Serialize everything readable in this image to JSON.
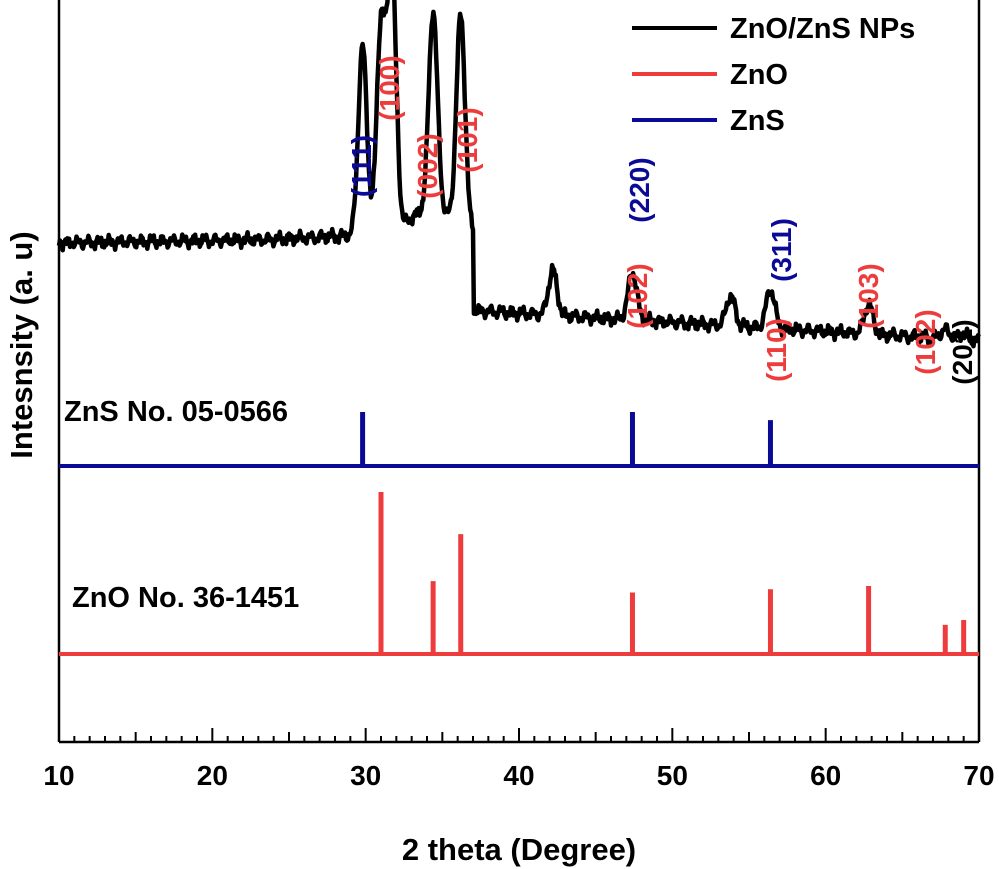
{
  "chart_data": {
    "type": "line",
    "xlabel": "2 theta (Degree)",
    "ylabel": "Intesnsity (a. u)",
    "xlim": [
      10,
      70
    ],
    "x_ticks": [
      "10",
      "20",
      "30",
      "40",
      "50",
      "60",
      "70"
    ],
    "grid": false,
    "legend_position": "top-right",
    "colors": {
      "sample": "#000000",
      "zno": "#ee3b3b",
      "zns": "#0a0a96"
    },
    "legend": [
      {
        "name": "ZnO/ZnS NPs",
        "color": "#000000"
      },
      {
        "name": "ZnO",
        "color": "#ee3b3b"
      },
      {
        "name": "ZnS",
        "color": "#0a0a96"
      }
    ],
    "series": [
      {
        "name": "ZnO/ZnS NPs",
        "color": "#000000",
        "peaks": [
          {
            "x": 29.8,
            "y": 0.71
          },
          {
            "x": 31.0,
            "y": 0.78
          },
          {
            "x": 31.7,
            "y": 1.0
          },
          {
            "x": 34.4,
            "y": 0.74
          },
          {
            "x": 36.2,
            "y": 0.78
          },
          {
            "x": 42.2,
            "y": 0.15
          },
          {
            "x": 47.4,
            "y": 0.16
          },
          {
            "x": 53.8,
            "y": 0.1
          },
          {
            "x": 56.4,
            "y": 0.13
          },
          {
            "x": 62.8,
            "y": 0.1
          },
          {
            "x": 67.8,
            "y": 0.03
          },
          {
            "x": 68.9,
            "y": 0.02
          }
        ]
      },
      {
        "name": "ZnS No. 05-0566",
        "color": "#0a0a96",
        "x": [
          29.8,
          47.4,
          56.4
        ],
        "values": [
          1.0,
          1.0,
          0.85
        ]
      },
      {
        "name": "ZnO No. 36-1451",
        "color": "#ee3b3b",
        "x": [
          31.0,
          34.4,
          36.2,
          47.4,
          56.4,
          62.8,
          67.8,
          69.0
        ],
        "values": [
          1.0,
          0.45,
          0.74,
          0.38,
          0.4,
          0.42,
          0.18,
          0.21
        ]
      }
    ],
    "reference_labels": [
      "ZnS No. 05-0566",
      "ZnO No. 36-1451"
    ],
    "annotations": [
      {
        "text": "(111)",
        "x": 29.8,
        "color": "#0a0a96"
      },
      {
        "text": "(100)",
        "x": 31.7,
        "color": "#ee3b3b"
      },
      {
        "text": "(002)",
        "x": 34.2,
        "color": "#ee3b3b"
      },
      {
        "text": "(101)",
        "x": 36.2,
        "color": "#ee3b3b"
      },
      {
        "text": "(220)",
        "x": 47.9,
        "color": "#0a0a96"
      },
      {
        "text": "(102)",
        "x": 47.1,
        "color": "#ee3b3b"
      },
      {
        "text": "(311)",
        "x": 57.7,
        "color": "#0a0a96"
      },
      {
        "text": "(110)",
        "x": 56.6,
        "color": "#ee3b3b"
      },
      {
        "text": "(103)",
        "x": 63.0,
        "color": "#ee3b3b"
      },
      {
        "text": "(102)",
        "x": 67.2,
        "color": "#ee3b3b"
      },
      {
        "text": "(201)",
        "x": 68.9,
        "color": "#000000"
      }
    ]
  }
}
